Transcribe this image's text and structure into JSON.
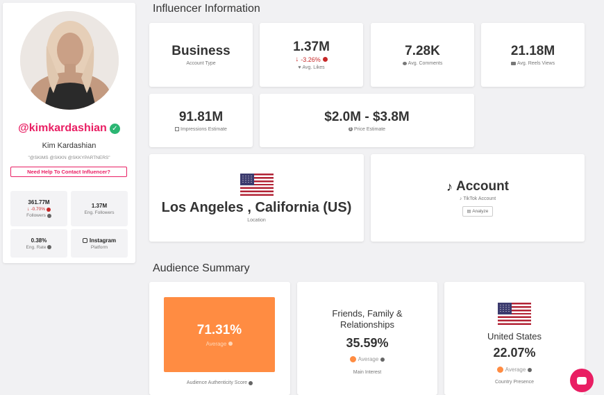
{
  "profile": {
    "handle": "@kimkardashian",
    "name": "Kim Kardashian",
    "bio_tags": "\"@SKIMS @SKKN @SKKYPARTNERS\"",
    "contact_button": "Need Help To Contact Influencer?",
    "stats": {
      "followers_value": "361.77M",
      "followers_change": "-0.70%",
      "followers_label": "Followers",
      "eng_followers_value": "1.37M",
      "eng_followers_label": "Eng. Followers",
      "eng_rate_value": "0.38%",
      "eng_rate_label": "Eng. Rate",
      "platform_value": "Instagram",
      "platform_label": "Platform"
    }
  },
  "influencer_info": {
    "title": "Influencer Information",
    "account_type": {
      "value": "Business",
      "label": "Account Type"
    },
    "avg_likes": {
      "value": "1.37M",
      "change": "-3.26%",
      "label": "Avg. Likes"
    },
    "avg_comments": {
      "value": "7.28K",
      "label": "Avg. Comments"
    },
    "avg_reels_views": {
      "value": "21.18M",
      "label": "Avg. Reels Views"
    },
    "impressions": {
      "value": "91.81M",
      "label": "Impressions Estimate"
    },
    "price": {
      "value": "$2.0M - $3.8M",
      "label": "Price Estimate"
    },
    "location": {
      "value": "Los Angeles , California (US)",
      "label": "Location"
    },
    "tiktok": {
      "value": "Account",
      "label": "TikTok Account",
      "button": "Analyze"
    }
  },
  "audience": {
    "title": "Audience Summary",
    "authenticity": {
      "value": "71.31%",
      "rating": "Average",
      "label": "Audience Authenticity Score"
    },
    "interest": {
      "name": "Friends, Family & Relationships",
      "value": "35.59%",
      "rating": "Average",
      "label": "Main Interest"
    },
    "country": {
      "name": "United States",
      "value": "22.07%",
      "rating": "Average",
      "label": "Country Presence"
    }
  },
  "colors": {
    "accent_pink": "#e91e63",
    "average_orange": "#ff8c42",
    "verified_green": "#2bb673",
    "negative_red": "#c62828"
  }
}
